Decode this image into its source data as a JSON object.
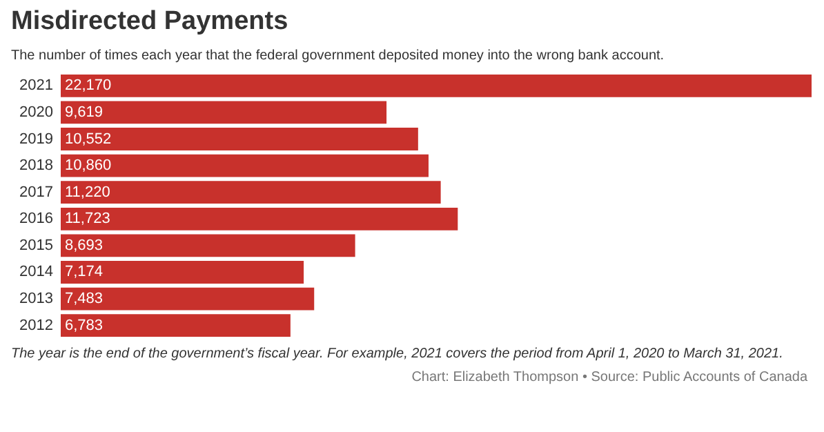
{
  "chart_data": {
    "type": "bar",
    "orientation": "horizontal",
    "title": "Misdirected Payments",
    "subtitle": "The number of times each year that the federal government deposited money into the wrong bank account.",
    "categories": [
      "2021",
      "2020",
      "2019",
      "2018",
      "2017",
      "2016",
      "2015",
      "2014",
      "2013",
      "2012"
    ],
    "values": [
      22170,
      9619,
      10552,
      10860,
      11220,
      11723,
      8693,
      7174,
      7483,
      6783
    ],
    "value_labels": [
      "22,170",
      "9,619",
      "10,552",
      "10,860",
      "11,220",
      "11,723",
      "8,693",
      "7,174",
      "7,483",
      "6,783"
    ],
    "color": "#c8312c",
    "annotations": [
      "The year is the end of the government’s fiscal year. For example, 2021 covers the period from April 1, 2020 to March 31, 2021.",
      "Chart: Elizabeth Thompson • Source: Public Accounts of Canada"
    ]
  }
}
